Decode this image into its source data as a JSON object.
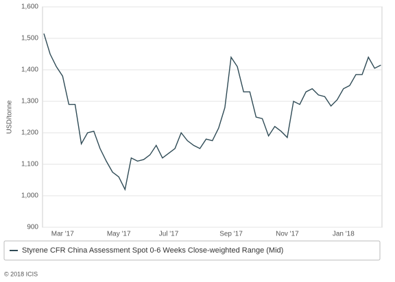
{
  "chart_data": {
    "type": "line",
    "y_label": "USD/tonne",
    "credit": "© 2018 ICIS",
    "categories": [
      null,
      null,
      null,
      "Mar '17",
      null,
      null,
      null,
      null,
      null,
      null,
      null,
      null,
      "May '17",
      null,
      null,
      null,
      null,
      null,
      null,
      null,
      "Jul '17",
      null,
      null,
      null,
      null,
      null,
      null,
      null,
      null,
      null,
      "Sep '17",
      null,
      null,
      null,
      null,
      null,
      null,
      null,
      null,
      "Nov '17",
      null,
      null,
      null,
      null,
      null,
      null,
      null,
      null,
      "Jan '18",
      null,
      null,
      null,
      null,
      null,
      null
    ],
    "series": [
      {
        "name": "Styrene CFR China Assessment Spot 0-6 Weeks Close-weighted Range (Mid)",
        "color": "#2e4a55",
        "values": [
          1515,
          1450,
          1410,
          1380,
          1290,
          1290,
          1165,
          1200,
          1205,
          1150,
          1110,
          1075,
          1060,
          1020,
          1120,
          1110,
          1115,
          1130,
          1160,
          1120,
          1135,
          1150,
          1200,
          1175,
          1160,
          1150,
          1180,
          1175,
          1215,
          1280,
          1440,
          1410,
          1330,
          1330,
          1250,
          1245,
          1190,
          1220,
          1205,
          1185,
          1300,
          1290,
          1330,
          1340,
          1320,
          1315,
          1285,
          1305,
          1340,
          1350,
          1385,
          1385,
          1440,
          1405,
          1415
        ]
      }
    ],
    "ylim": [
      900,
      1600
    ],
    "yticks": [
      900,
      {
        "value": 1000,
        "label": "1,000"
      },
      {
        "value": 1100,
        "label": "1,100"
      },
      {
        "value": 1200,
        "label": "1,200"
      },
      {
        "value": 1300,
        "label": "1,300"
      },
      {
        "value": 1400,
        "label": "1,400"
      },
      {
        "value": 1500,
        "label": "1,500"
      },
      {
        "value": 1600,
        "label": "1,600"
      }
    ],
    "grid": true
  }
}
